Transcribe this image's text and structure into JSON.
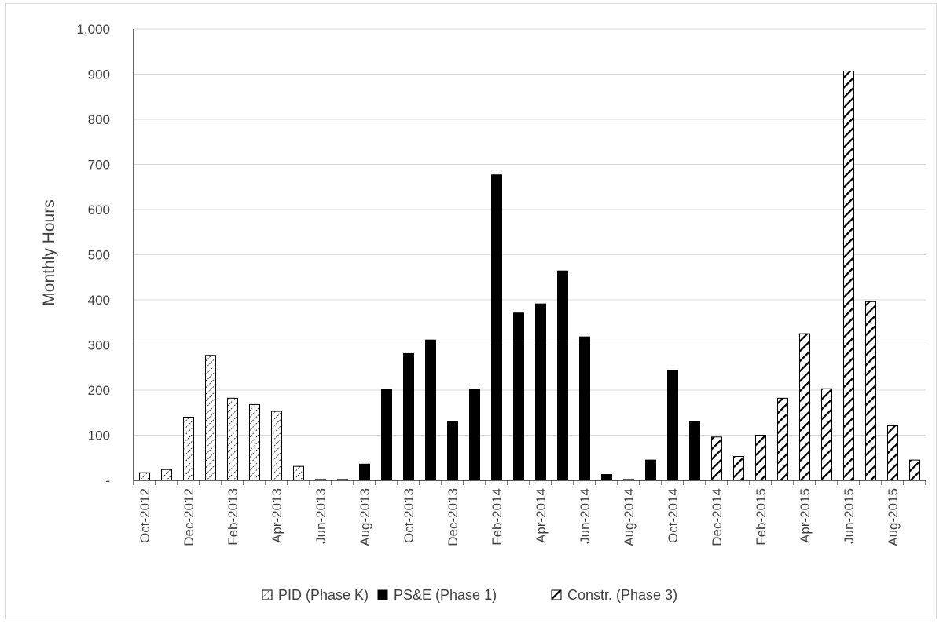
{
  "chart_data": {
    "type": "bar",
    "title": "",
    "xlabel": "",
    "ylabel": "Monthly Hours",
    "ylim": [
      0,
      1000
    ],
    "yticks": [
      0,
      100,
      200,
      300,
      400,
      500,
      600,
      700,
      800,
      900,
      1000
    ],
    "ytick_labels": [
      "-",
      "100",
      "200",
      "300",
      "400",
      "500",
      "600",
      "700",
      "800",
      "900",
      "1,000"
    ],
    "grid": true,
    "legend_position": "bottom",
    "categories": [
      "Oct-2012",
      "Nov-2012",
      "Dec-2012",
      "Jan-2013",
      "Feb-2013",
      "Mar-2013",
      "Apr-2013",
      "May-2013",
      "Jun-2013",
      "Jul-2013",
      "Aug-2013",
      "Sep-2013",
      "Oct-2013",
      "Nov-2013",
      "Dec-2013",
      "Jan-2014",
      "Feb-2014",
      "Mar-2014",
      "Apr-2014",
      "May-2014",
      "Jun-2014",
      "Jul-2014",
      "Aug-2014",
      "Sep-2014",
      "Oct-2014",
      "Nov-2014",
      "Dec-2014",
      "Jan-2015",
      "Feb-2015",
      "Mar-2015",
      "Apr-2015",
      "May-2015",
      "Jun-2015",
      "Jul-2015",
      "Aug-2015",
      "Sep-2015"
    ],
    "xtick_labels": [
      "Oct-2012",
      "",
      "Dec-2012",
      "",
      "Feb-2013",
      "",
      "Apr-2013",
      "",
      "Jun-2013",
      "",
      "Aug-2013",
      "",
      "Oct-2013",
      "",
      "Dec-2013",
      "",
      "Feb-2014",
      "",
      "Apr-2014",
      "",
      "Jun-2014",
      "",
      "Aug-2014",
      "",
      "Oct-2014",
      "",
      "Dec-2014",
      "",
      "Feb-2015",
      "",
      "Apr-2015",
      "",
      "Jun-2015",
      "",
      "Aug-2015",
      ""
    ],
    "series": [
      {
        "name": "PID (Phase K)",
        "pattern": "dotted-diagonal",
        "color": "#000000",
        "values": [
          17,
          24,
          140,
          277,
          182,
          168,
          153,
          31,
          0,
          0,
          0,
          0,
          0,
          0,
          0,
          0,
          0,
          0,
          0,
          0,
          0,
          0,
          0,
          0,
          0,
          0,
          0,
          0,
          0,
          0,
          0,
          0,
          0,
          0,
          0,
          0
        ]
      },
      {
        "name": "PS&E (Phase 1)",
        "pattern": "solid",
        "color": "#000000",
        "values": [
          0,
          0,
          0,
          0,
          0,
          0,
          0,
          0,
          2,
          2,
          36,
          201,
          281,
          311,
          130,
          202,
          677,
          371,
          391,
          464,
          318,
          13,
          2,
          45,
          243,
          130,
          0,
          0,
          0,
          0,
          0,
          0,
          0,
          0,
          0,
          0
        ]
      },
      {
        "name": "Constr. (Phase 3)",
        "pattern": "wide-diagonal",
        "color": "#000000",
        "values": [
          0,
          0,
          0,
          0,
          0,
          0,
          0,
          0,
          0,
          0,
          0,
          0,
          0,
          0,
          0,
          0,
          0,
          0,
          0,
          0,
          0,
          0,
          0,
          0,
          0,
          0,
          96,
          53,
          100,
          182,
          325,
          203,
          907,
          396,
          121,
          45
        ]
      }
    ]
  }
}
